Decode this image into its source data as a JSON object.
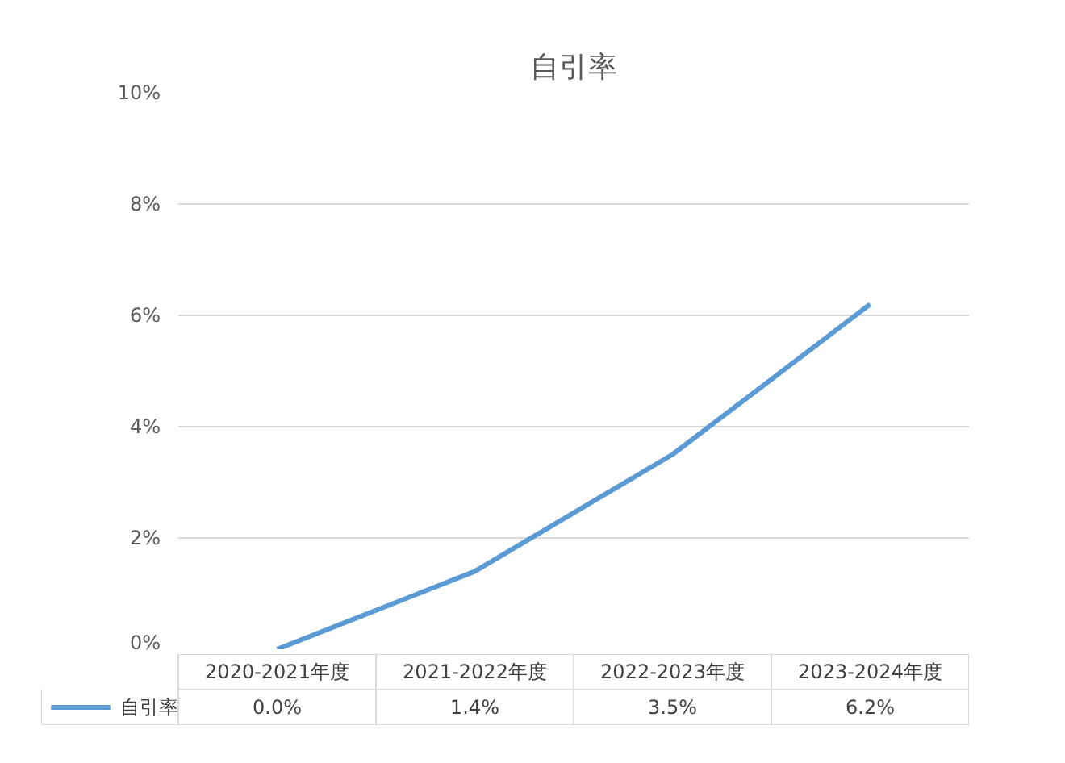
{
  "chart_data": {
    "type": "line",
    "title": "自引率",
    "categories": [
      "2020-2021年度",
      "2021-2022年度",
      "2022-2023年度",
      "2023-2024年度"
    ],
    "series": [
      {
        "name": "自引率",
        "color": "#5b9bd5",
        "values": [
          0.0,
          1.4,
          3.5,
          6.2
        ],
        "value_labels": [
          "0.0%",
          "1.4%",
          "3.5%",
          "6.2%"
        ]
      }
    ],
    "ylim": [
      0,
      10
    ],
    "yticks": [
      {
        "value": 0,
        "label": "0%"
      },
      {
        "value": 2,
        "label": "2%"
      },
      {
        "value": 4,
        "label": "4%"
      },
      {
        "value": 6,
        "label": "6%"
      },
      {
        "value": 8,
        "label": "8%"
      },
      {
        "value": 10,
        "label": "10%"
      }
    ],
    "grid": "y",
    "legend": "bottom",
    "marker": "none",
    "line_style": "solid"
  }
}
